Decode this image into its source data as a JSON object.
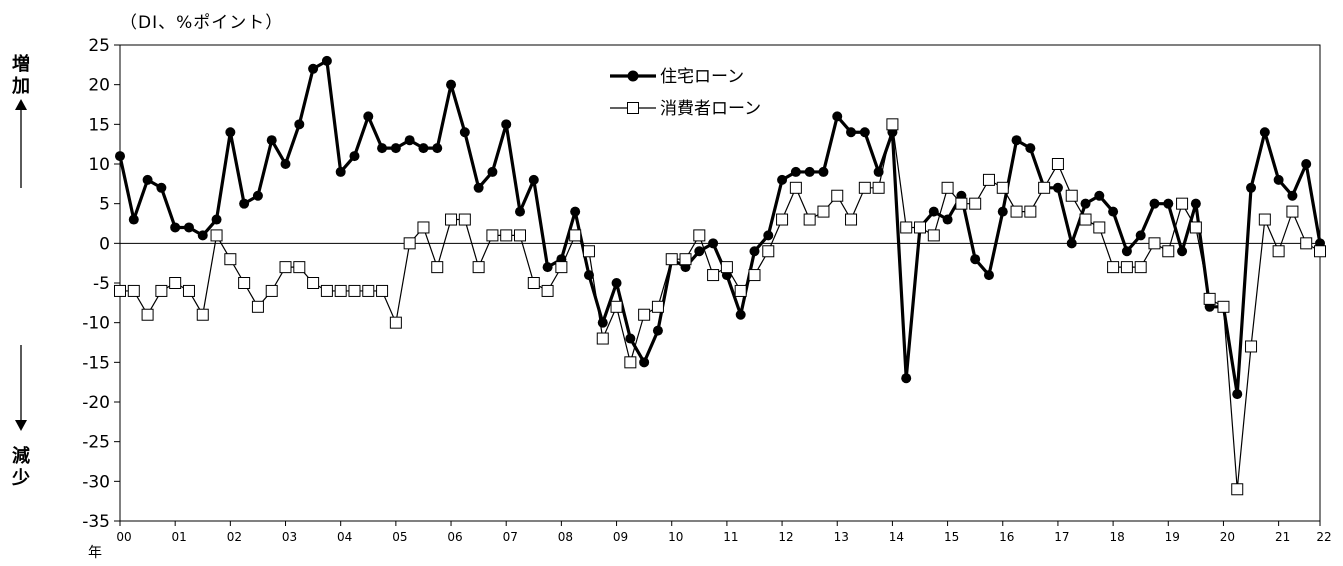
{
  "unit_label": "（DI、%ポイント）",
  "side_labels": {
    "increase": [
      "増",
      "加"
    ],
    "decrease": [
      "減",
      "少"
    ]
  },
  "year_suffix": "年",
  "chart_data": {
    "type": "line",
    "ylim": [
      -35,
      25
    ],
    "yticks": [
      25,
      20,
      15,
      10,
      5,
      0,
      -5,
      -10,
      -15,
      -20,
      -25,
      -30,
      -35
    ],
    "x_year_labels": [
      "00",
      "01",
      "02",
      "03",
      "04",
      "05",
      "06",
      "07",
      "08",
      "09",
      "10",
      "11",
      "12",
      "13",
      "14",
      "15",
      "16",
      "17",
      "18",
      "19",
      "20",
      "21",
      "22"
    ],
    "legend_position": "top-center",
    "series": [
      {
        "name": "住宅ローン",
        "marker": "filled-circle",
        "color": "#000000",
        "values": [
          11,
          3,
          8,
          7,
          2,
          2,
          1,
          3,
          14,
          5,
          6,
          13,
          10,
          15,
          22,
          23,
          9,
          11,
          16,
          12,
          12,
          13,
          12,
          12,
          20,
          14,
          7,
          9,
          15,
          4,
          8,
          -3,
          -2,
          4,
          -4,
          -10,
          -5,
          -12,
          -15,
          -11,
          -2,
          -3,
          -1,
          0,
          -4,
          -9,
          -1,
          1,
          8,
          9,
          9,
          9,
          16,
          14,
          14,
          9,
          14,
          -17,
          2,
          4,
          3,
          6,
          -2,
          -4,
          4,
          13,
          12,
          7,
          7,
          0,
          5,
          6,
          4,
          -1,
          1,
          5,
          5,
          -1,
          5,
          -8,
          -8,
          -19,
          7,
          14,
          8,
          6,
          10,
          0
        ]
      },
      {
        "name": "消費者ローン",
        "marker": "hollow-square",
        "color": "#000000",
        "values": [
          -6,
          -6,
          -9,
          -6,
          -5,
          -6,
          -9,
          1,
          -2,
          -5,
          -8,
          -6,
          -3,
          -3,
          -5,
          -6,
          -6,
          -6,
          -6,
          -6,
          -10,
          0,
          2,
          -3,
          3,
          3,
          -3,
          1,
          1,
          1,
          -5,
          -6,
          -3,
          1,
          -1,
          -12,
          -8,
          -15,
          -9,
          -8,
          -2,
          -2,
          1,
          -4,
          -3,
          -6,
          -4,
          -1,
          3,
          7,
          3,
          4,
          6,
          3,
          7,
          7,
          15,
          2,
          2,
          1,
          7,
          5,
          5,
          8,
          7,
          4,
          4,
          7,
          10,
          6,
          3,
          2,
          -3,
          -3,
          -3,
          0,
          -1,
          5,
          2,
          -7,
          -8,
          -31,
          -13,
          3,
          -1,
          4,
          0,
          -1
        ]
      }
    ]
  }
}
